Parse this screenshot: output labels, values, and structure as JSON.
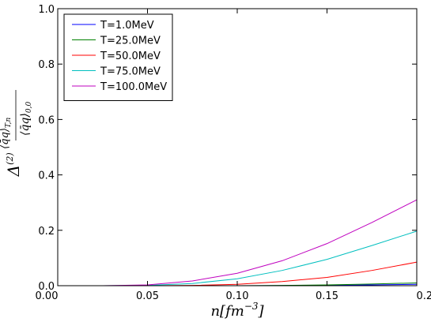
{
  "chart_data": {
    "type": "line",
    "title": "",
    "xlabel": "n[fm^-3]",
    "ylabel": "Δ^(2) ⟨q̄q⟩_{T,n} / ⟨q̄q⟩_{0,0}",
    "xlim": [
      0.0,
      0.2
    ],
    "ylim": [
      0.0,
      1.0
    ],
    "xticks": [
      "0.00",
      "0.05",
      "0.10",
      "0.15",
      "0.20"
    ],
    "yticks": [
      "0.0",
      "0.2",
      "0.4",
      "0.6",
      "0.8",
      "1.0"
    ],
    "grid": false,
    "legend_position": "top-left",
    "x": [
      0.0,
      0.025,
      0.05,
      0.075,
      0.1,
      0.125,
      0.15,
      0.175,
      0.2
    ],
    "series": [
      {
        "name": "T=1.0MeV",
        "color": "#0000ff",
        "values": [
          0,
          0,
          0,
          0,
          0,
          0.0005,
          0.0015,
          0.003,
          0.005
        ]
      },
      {
        "name": "T=25.0MeV",
        "color": "#008000",
        "values": [
          0,
          0,
          0,
          0,
          0,
          0.001,
          0.003,
          0.006,
          0.01
        ]
      },
      {
        "name": "T=50.0MeV",
        "color": "#ff0000",
        "values": [
          0,
          0,
          0,
          0.001,
          0.005,
          0.015,
          0.03,
          0.055,
          0.085
        ]
      },
      {
        "name": "T=75.0MeV",
        "color": "#00bfbf",
        "values": [
          0,
          0,
          0.001,
          0.008,
          0.025,
          0.055,
          0.095,
          0.145,
          0.197
        ]
      },
      {
        "name": "T=100.0MeV",
        "color": "#bf00bf",
        "values": [
          0,
          0,
          0.003,
          0.017,
          0.045,
          0.09,
          0.152,
          0.228,
          0.31
        ]
      }
    ]
  }
}
